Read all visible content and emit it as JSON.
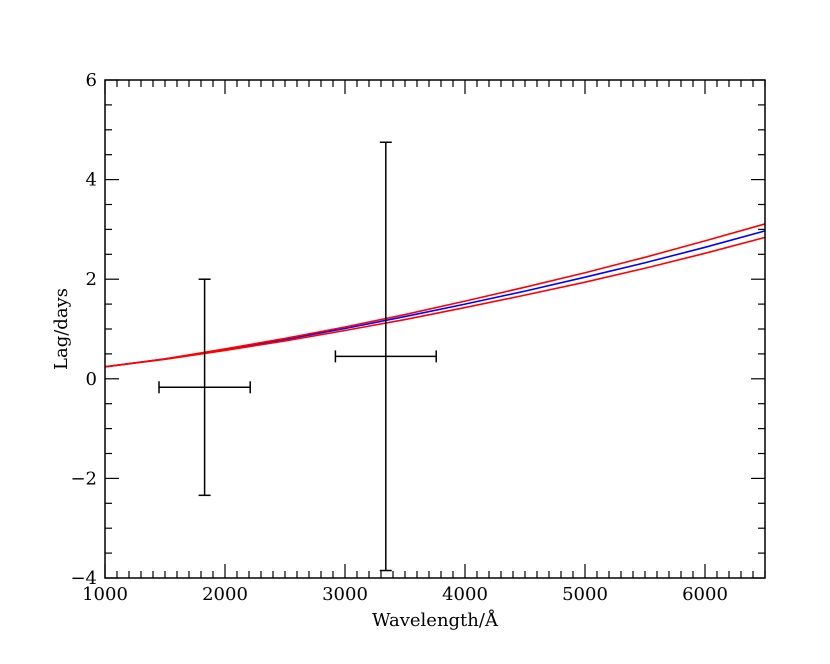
{
  "chart_data": {
    "type": "line",
    "title": "",
    "xlabel": "Wavelength/Å",
    "ylabel": "Lag/days",
    "xlim": [
      1000,
      6500
    ],
    "ylim": [
      -4,
      6
    ],
    "x_ticks": [
      1000,
      2000,
      3000,
      4000,
      5000,
      6000
    ],
    "x_tick_labels": [
      "1000",
      "2000",
      "3000",
      "4000",
      "5000",
      "6000"
    ],
    "y_ticks": [
      -4,
      -2,
      0,
      2,
      4,
      6
    ],
    "y_tick_labels": [
      "−4",
      "−2",
      "0",
      "2",
      "4",
      "6"
    ],
    "grid": false,
    "legend": "none",
    "series": [
      {
        "color": "#0000ff",
        "kind": "line",
        "x": [
          1000,
          1500,
          2000,
          2500,
          3000,
          3500,
          4000,
          4500,
          5000,
          5500,
          6000,
          6500
        ],
        "y": [
          0.24,
          0.4,
          0.59,
          0.79,
          1.01,
          1.25,
          1.5,
          1.76,
          2.04,
          2.33,
          2.64,
          2.97
        ]
      },
      {
        "color": "#ff0000",
        "kind": "line",
        "x": [
          1000,
          1500,
          2000,
          2500,
          3000,
          3500,
          4000,
          4500,
          5000,
          5500,
          6000,
          6500
        ],
        "y": [
          0.24,
          0.4,
          0.6,
          0.81,
          1.04,
          1.29,
          1.56,
          1.84,
          2.13,
          2.44,
          2.77,
          3.11
        ]
      },
      {
        "color": "#ff0000",
        "kind": "line",
        "x": [
          1000,
          1500,
          2000,
          2500,
          3000,
          3500,
          4000,
          4500,
          5000,
          5500,
          6000,
          6500
        ],
        "y": [
          0.24,
          0.39,
          0.57,
          0.76,
          0.97,
          1.19,
          1.43,
          1.68,
          1.94,
          2.22,
          2.52,
          2.84
        ]
      },
      {
        "color": "#000000",
        "kind": "errorbar",
        "points": [
          {
            "x": 1830,
            "y": -0.17,
            "xerr_low": 380,
            "xerr_high": 380,
            "yerr_low": 2.17,
            "yerr_high": 2.17
          },
          {
            "x": 3340,
            "y": 0.45,
            "xerr_low": 420,
            "xerr_high": 420,
            "yerr_low": 4.3,
            "yerr_high": 4.3
          }
        ]
      }
    ]
  }
}
